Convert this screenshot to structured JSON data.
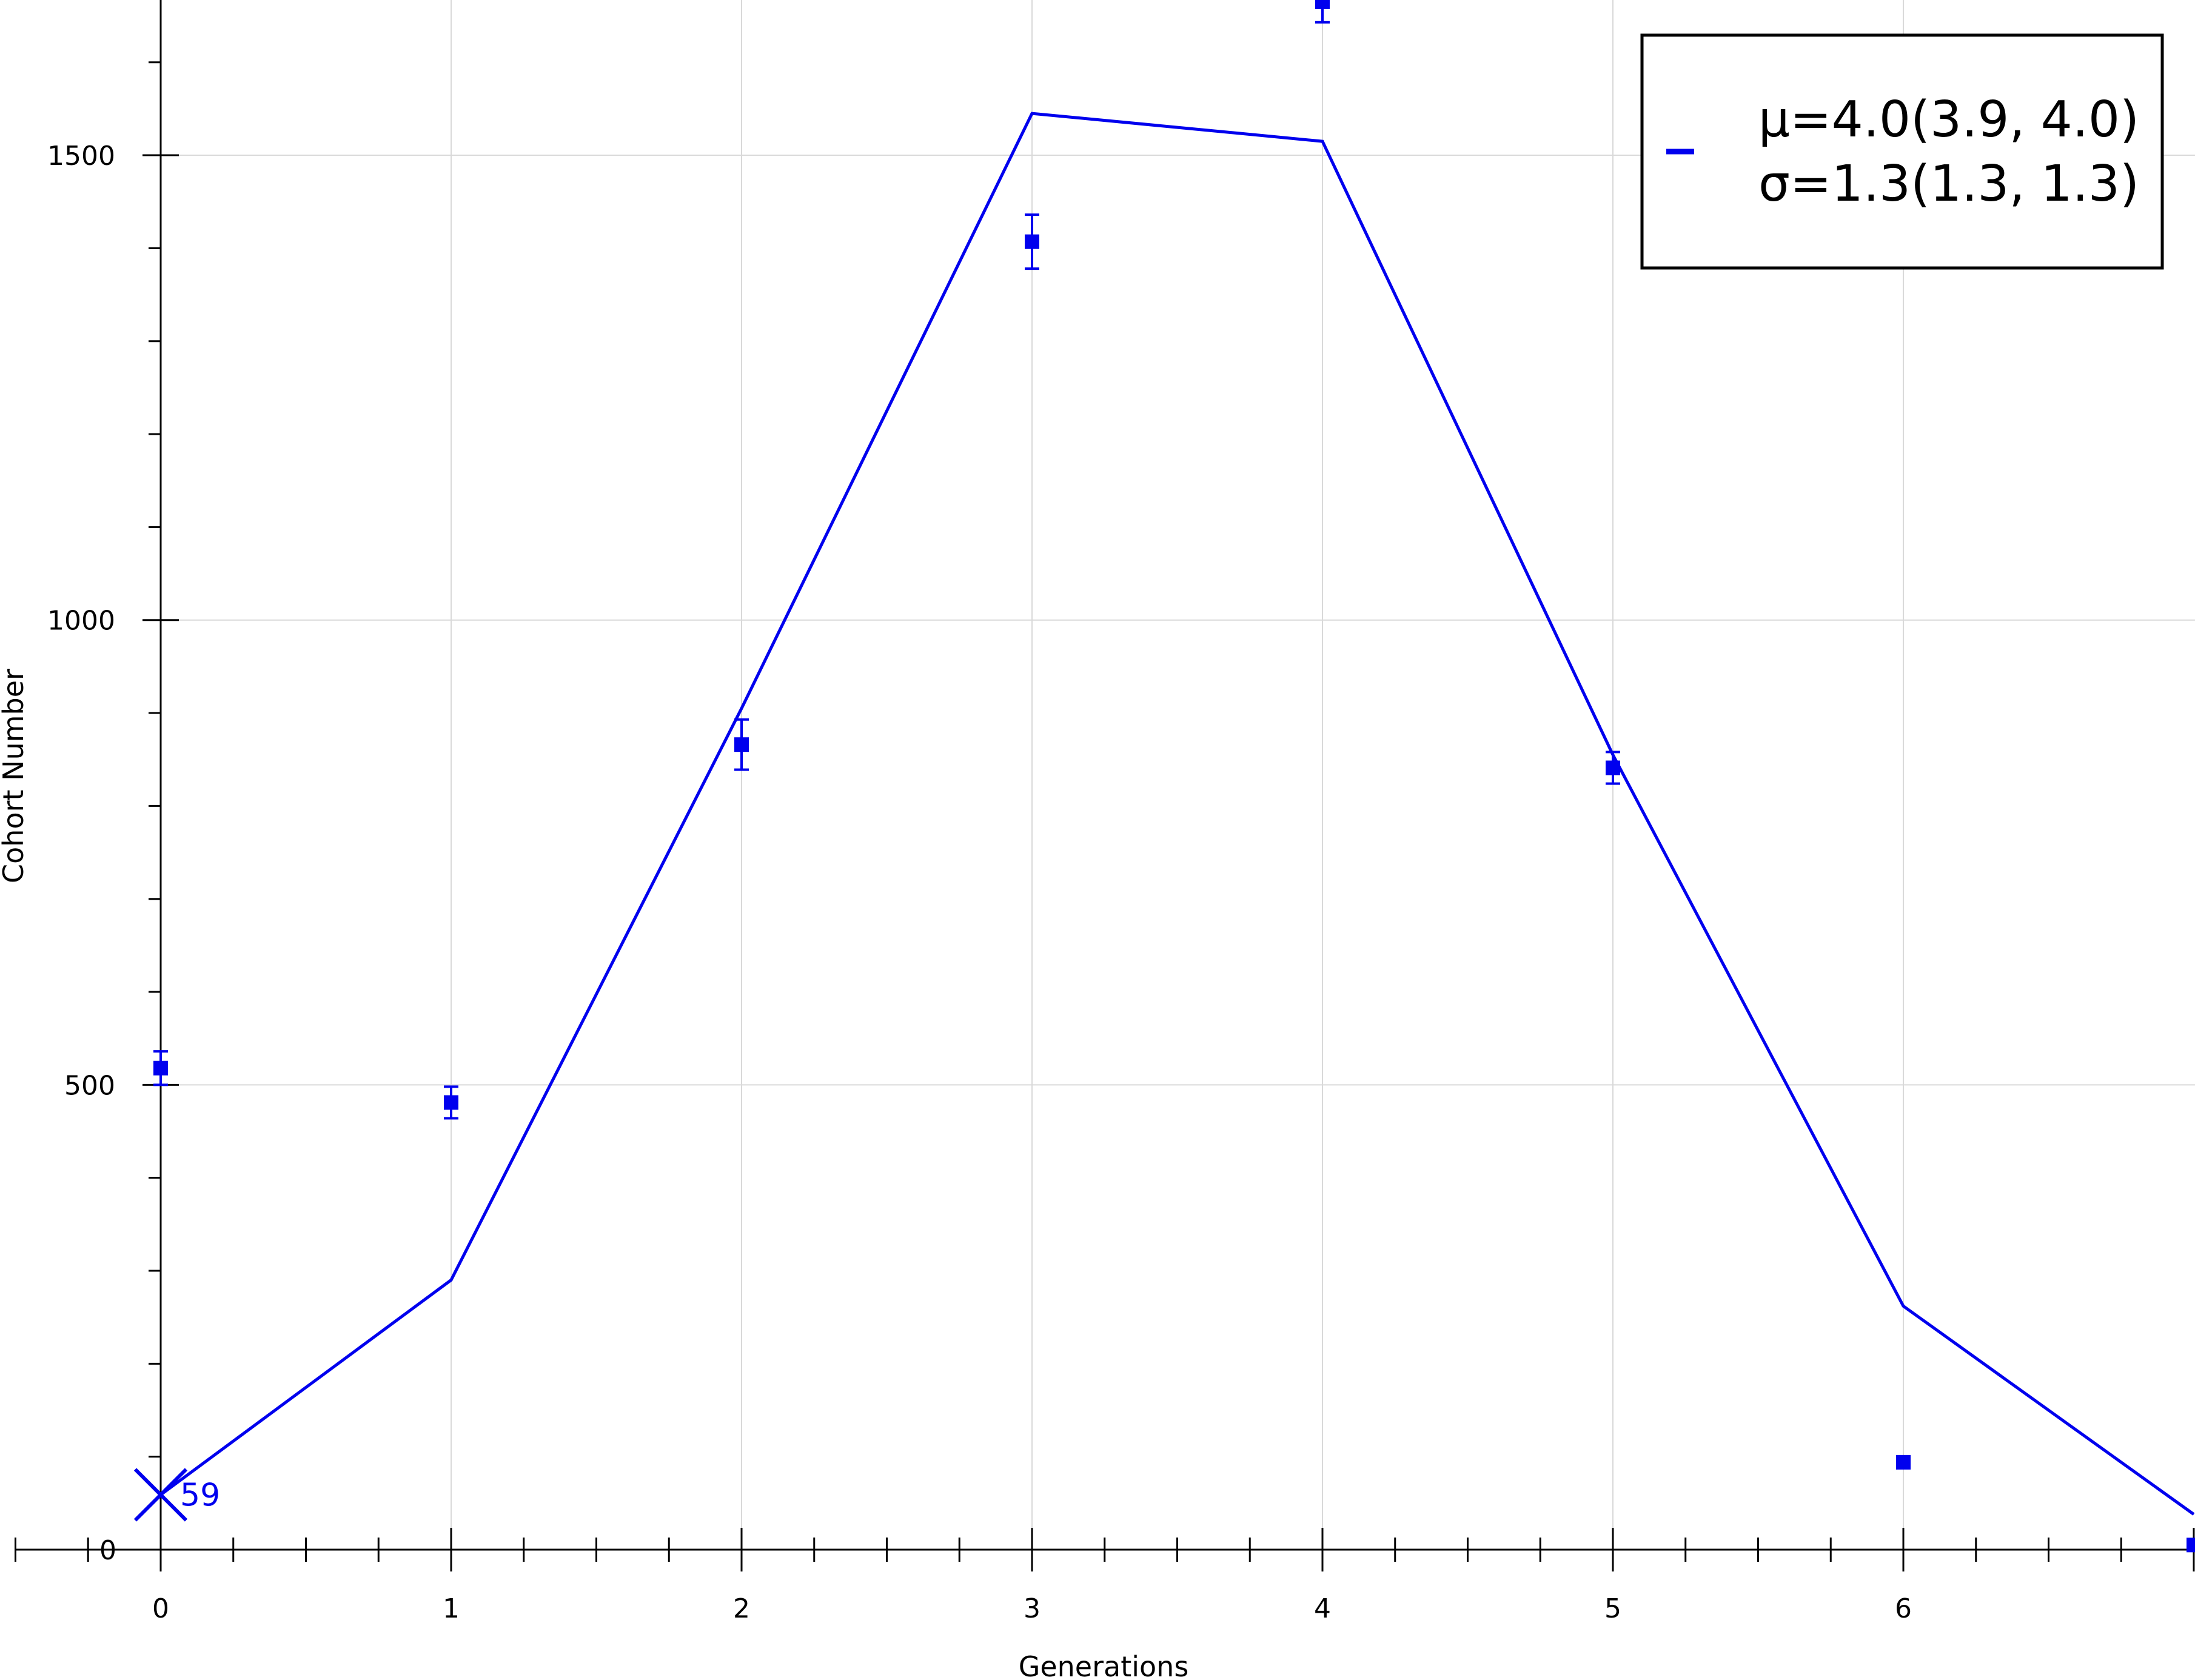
{
  "chart_data": {
    "type": "line",
    "title": "",
    "xlabel": "Generations",
    "ylabel": "Cohort Number",
    "xlim": [
      -0.5,
      7
    ],
    "ylim": [
      0,
      1670
    ],
    "x_ticks": [
      0,
      1,
      2,
      3,
      4,
      5,
      6
    ],
    "y_ticks": [
      0,
      500,
      1000,
      1500
    ],
    "grid": true,
    "color": "#0000ee",
    "legend": {
      "placement": "top-right",
      "lines": [
        "μ=4.0(3.9, 4.0)",
        "σ=1.3(1.3, 1.3)"
      ]
    },
    "series": [
      {
        "kind": "points-with-errorbars",
        "x": [
          0,
          1,
          2,
          3,
          4,
          5,
          6,
          7
        ],
        "y": [
          518,
          481,
          866,
          1407,
          1665,
          841,
          94,
          5
        ],
        "err": [
          18,
          17,
          27,
          29,
          22,
          17,
          4,
          3
        ]
      },
      {
        "kind": "fit-line",
        "x": [
          0,
          1,
          2,
          3,
          4,
          5,
          6,
          7
        ],
        "y": [
          59,
          290,
          905,
          1545,
          1515,
          855,
          262,
          38
        ]
      }
    ],
    "annotation": {
      "x": 0,
      "y": 59,
      "marker": "x",
      "label": "59"
    }
  }
}
